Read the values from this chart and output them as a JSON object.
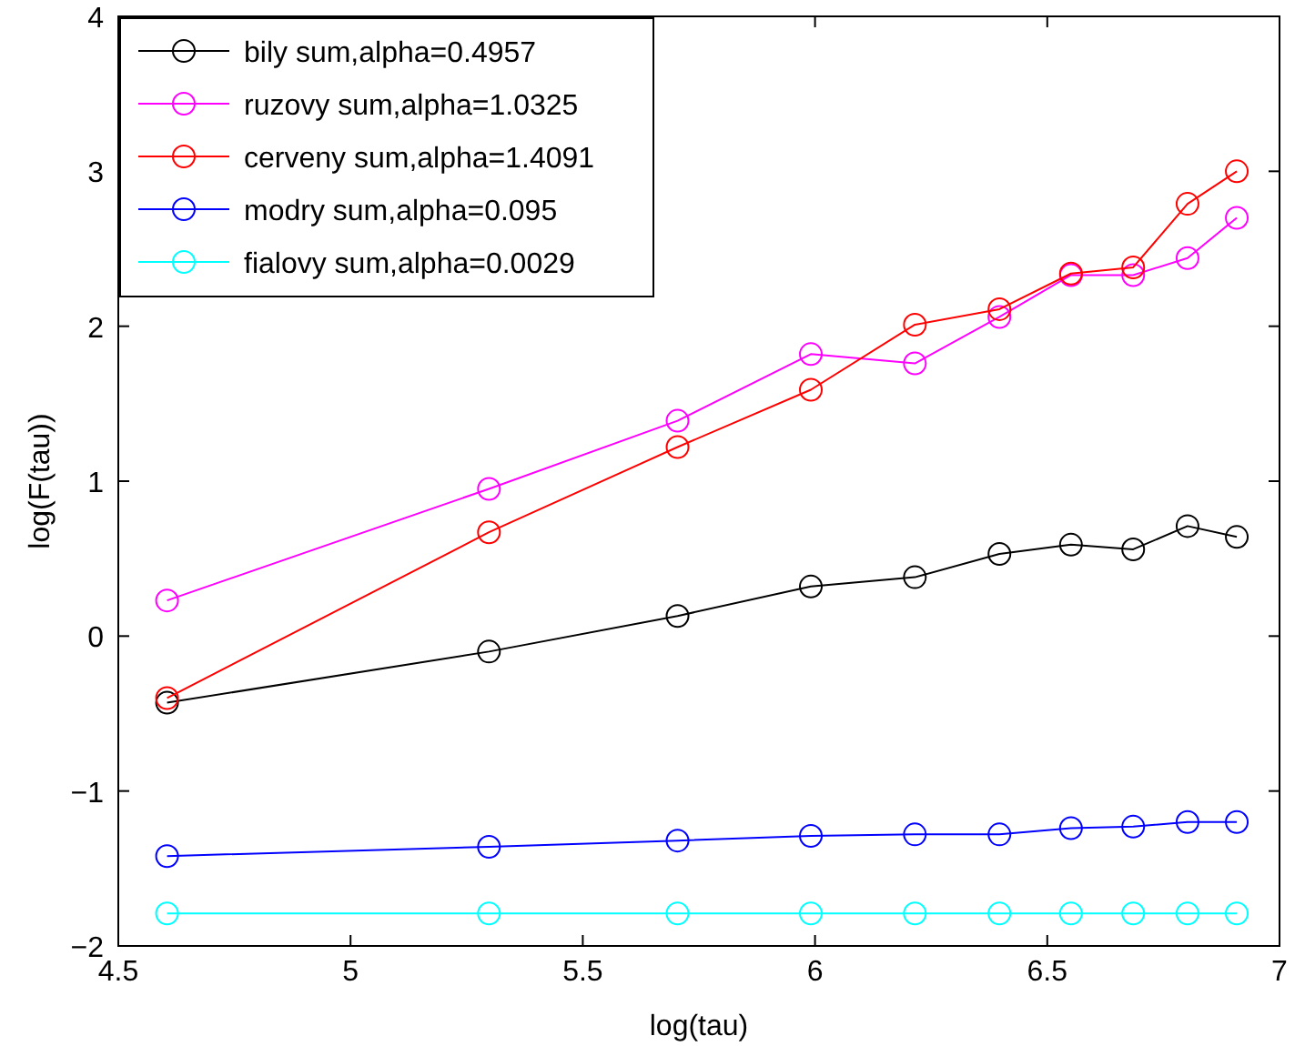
{
  "chart_data": {
    "type": "line",
    "xlabel": "log(tau)",
    "ylabel": "log(F(tau))",
    "x": [
      4.605,
      5.298,
      5.704,
      5.991,
      6.215,
      6.397,
      6.551,
      6.685,
      6.802,
      6.908
    ],
    "series": [
      {
        "name": "bily sum,alpha=0.4957",
        "color": "#000000",
        "values": [
          -0.43,
          -0.1,
          0.13,
          0.32,
          0.38,
          0.53,
          0.59,
          0.56,
          0.71,
          0.64
        ]
      },
      {
        "name": "ruzovy sum,alpha=1.0325",
        "color": "#ff00ff",
        "values": [
          0.23,
          0.95,
          1.39,
          1.82,
          1.76,
          2.06,
          2.33,
          2.33,
          2.44,
          2.7
        ]
      },
      {
        "name": "cerveny sum,alpha=1.4091",
        "color": "#ff0000",
        "values": [
          -0.4,
          0.67,
          1.22,
          1.59,
          2.01,
          2.11,
          2.34,
          2.38,
          2.79,
          3.0
        ]
      },
      {
        "name": "modry sum,alpha=0.095",
        "color": "#0000ff",
        "values": [
          -1.42,
          -1.36,
          -1.32,
          -1.29,
          -1.28,
          -1.28,
          -1.24,
          -1.23,
          -1.2,
          -1.2
        ]
      },
      {
        "name": "fialovy sum,alpha=0.0029",
        "color": "#00ffff",
        "values": [
          -1.79,
          -1.79,
          -1.79,
          -1.79,
          -1.79,
          -1.79,
          -1.79,
          -1.79,
          -1.79,
          -1.79
        ]
      }
    ],
    "xlim": [
      4.5,
      7
    ],
    "xticks": [
      4.5,
      5,
      5.5,
      6,
      6.5,
      7
    ],
    "ylim": [
      -2,
      4
    ],
    "yticks": [
      -2,
      -1,
      0,
      1,
      2,
      3,
      4
    ],
    "legend": "top left",
    "marker": "circle",
    "line_style": "solid",
    "grid": false
  }
}
